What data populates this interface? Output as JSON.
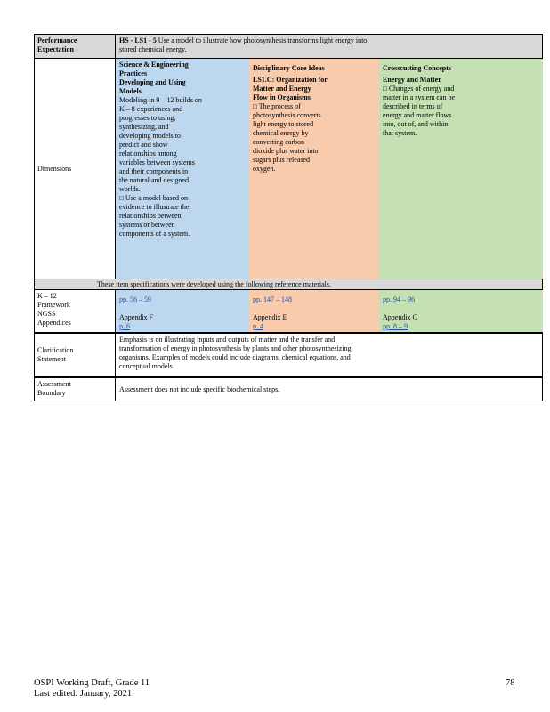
{
  "performance_expectation": {
    "label_line1": "Performance",
    "label_line2": "Expectation",
    "code": "HS - LS1 - 5",
    "text_line1": "Use a model to illustrate how photosynthesis transforms light energy into",
    "text_line2": "stored chemical energy."
  },
  "dimensions": {
    "label": "Dimensions",
    "sep": {
      "title_line1": "Science & Engineering",
      "title_line2": "Practices",
      "subtitle_line1": "Developing and Using",
      "subtitle_line2": "Models",
      "body": [
        "Modeling in 9 – 12 builds on",
        "K – 8 experiences and",
        "progresses to using,",
        "synthesizing, and",
        "developing models to",
        "predict and show",
        "relationships among",
        "variables between systems",
        "and their components in",
        "the natural and designed",
        "worlds."
      ],
      "bullet": [
        "□ Use a model based on",
        "evidence to illustrate the",
        "relationships between",
        "systems or between",
        "components of a system."
      ]
    },
    "dci": {
      "title": "Disciplinary Core Ideas",
      "subtitle_line1": "LS1.C: Organization for",
      "subtitle_line2": "Matter and Energy",
      "subtitle_line3": "Flow in Organisms",
      "bullet": [
        "□ The process of",
        "photosynthesis converts",
        "light energy to stored",
        "chemical energy by",
        "converting carbon",
        "dioxide plus water into",
        "sugars plus released",
        "oxygen."
      ]
    },
    "ccc": {
      "title": "Crosscutting Concepts",
      "subtitle": "Energy and Matter",
      "bullet": [
        "□ Changes of energy and",
        "matter in a system can be",
        "described in terms of",
        "energy and matter flows",
        "into, out of, and within",
        "that system."
      ]
    }
  },
  "reference_banner": "These item specifications were developed using the following reference materials.",
  "references": {
    "labels": [
      "K – 12",
      "Framework",
      "NGSS",
      "Appendices"
    ],
    "sep": {
      "framework": "pp. 56 – 59",
      "appendix": "Appendix F",
      "appendix_pages": "p. 6"
    },
    "dci": {
      "framework": "pp. 147 – 148",
      "appendix": "Appendix E",
      "appendix_pages": "p. 4"
    },
    "ccc": {
      "framework": "pp. 94 – 96",
      "appendix": "Appendix G",
      "appendix_pages": "pp. 8 – 9"
    }
  },
  "clarification": {
    "label_line1": "Clarification",
    "label_line2": "Statement",
    "text": [
      "Emphasis is on illustrating inputs and outputs of matter and the transfer and",
      "transformation of energy in photosynthesis by plants and other photosynthesizing",
      "organisms. Examples of models could include diagrams, chemical equations, and",
      "conceptual models."
    ]
  },
  "assessment": {
    "label_line1": "Assessment",
    "label_line2": "Boundary",
    "text": "Assessment does not include specific biochemical steps."
  },
  "footer": {
    "line1": "OSPI Working Draft, Grade 11",
    "line2": "Last edited: January, 2021",
    "page_number": "78"
  },
  "colors": {
    "sep_bg": "#bdd7ee",
    "dci_bg": "#f8cbad",
    "ccc_bg": "#c5e0b3",
    "header_bg": "#d9d9d9",
    "link_blue": "#1f4e9e"
  }
}
